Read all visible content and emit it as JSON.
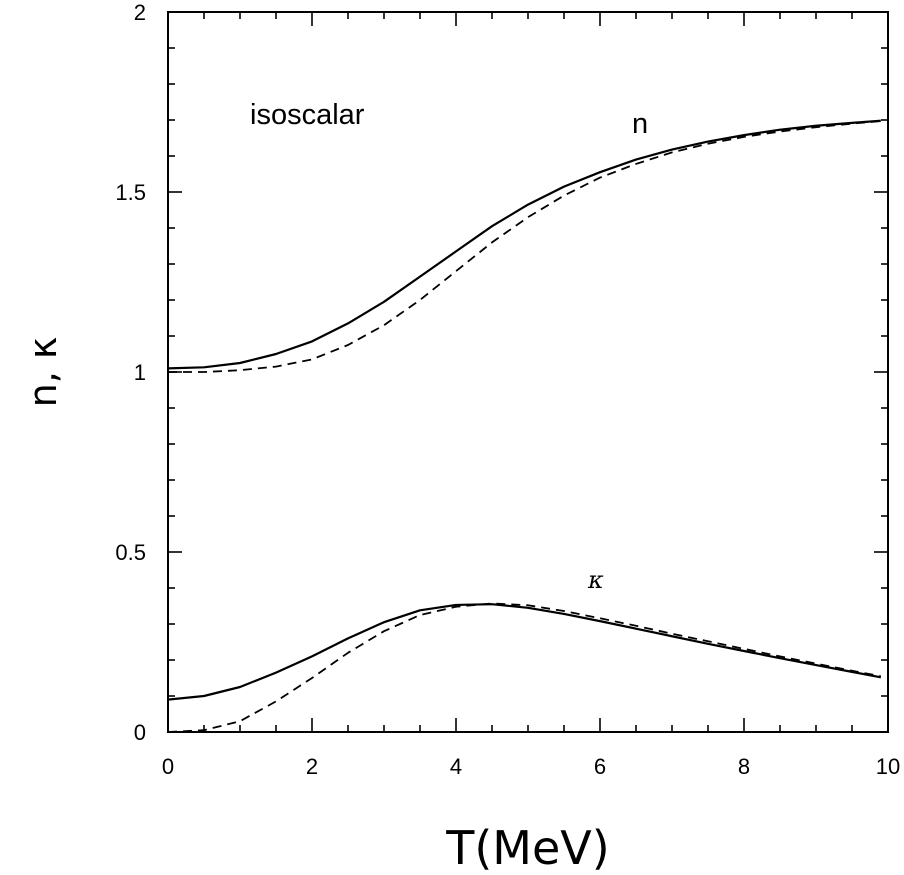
{
  "chart_data": {
    "type": "line",
    "xlabel": "T(MeV)",
    "ylabel": "n, κ",
    "xlim": [
      0,
      10
    ],
    "ylim": [
      0,
      2
    ],
    "x_ticks": [
      "0",
      "2",
      "4",
      "6",
      "8",
      "10"
    ],
    "y_ticks": [
      "0",
      "0.5",
      "1",
      "1.5",
      "2"
    ],
    "x_tick_values": [
      0,
      2,
      4,
      6,
      8,
      10
    ],
    "y_tick_values": [
      0,
      0.5,
      1,
      1.5,
      2
    ],
    "grid": false,
    "annotations": {
      "panel": "isoscalar",
      "n_label": "n",
      "kappa_label": "κ"
    },
    "series": [
      {
        "style": "solid",
        "x": [
          0,
          0.5,
          1,
          1.5,
          2,
          2.5,
          3,
          3.5,
          4,
          4.5,
          5,
          5.5,
          6,
          6.5,
          7,
          7.5,
          8,
          8.5,
          9,
          9.5,
          9.9
        ],
        "y": [
          1.01,
          1.013,
          1.025,
          1.05,
          1.085,
          1.135,
          1.195,
          1.265,
          1.335,
          1.405,
          1.465,
          1.515,
          1.555,
          1.59,
          1.618,
          1.64,
          1.658,
          1.673,
          1.684,
          1.692,
          1.698
        ]
      },
      {
        "style": "dashed",
        "x": [
          0,
          0.5,
          1,
          1.5,
          2,
          2.5,
          3,
          3.5,
          4,
          4.5,
          5,
          5.5,
          6,
          6.5,
          7,
          7.5,
          8,
          8.5,
          9,
          9.5,
          9.9
        ],
        "y": [
          1.0,
          1.0,
          1.005,
          1.015,
          1.035,
          1.075,
          1.13,
          1.2,
          1.28,
          1.36,
          1.43,
          1.49,
          1.54,
          1.578,
          1.61,
          1.634,
          1.653,
          1.668,
          1.68,
          1.69,
          1.697
        ]
      },
      {
        "style": "solid",
        "x": [
          0,
          0.5,
          1,
          1.5,
          2,
          2.5,
          3,
          3.5,
          4,
          4.5,
          5,
          5.5,
          6,
          6.5,
          7,
          7.5,
          8,
          8.5,
          9,
          9.5,
          9.9
        ],
        "y": [
          0.09,
          0.1,
          0.125,
          0.165,
          0.21,
          0.26,
          0.305,
          0.338,
          0.353,
          0.355,
          0.345,
          0.328,
          0.308,
          0.287,
          0.266,
          0.245,
          0.225,
          0.205,
          0.186,
          0.167,
          0.152
        ]
      },
      {
        "style": "dashed",
        "x": [
          0,
          0.5,
          1,
          1.5,
          2,
          2.5,
          3,
          3.5,
          4,
          4.5,
          5,
          5.5,
          6,
          6.5,
          7,
          7.5,
          8,
          8.5,
          9,
          9.5,
          9.9
        ],
        "y": [
          0.0,
          0.005,
          0.03,
          0.085,
          0.15,
          0.22,
          0.28,
          0.325,
          0.348,
          0.357,
          0.352,
          0.336,
          0.316,
          0.295,
          0.273,
          0.252,
          0.231,
          0.21,
          0.19,
          0.17,
          0.155
        ]
      }
    ]
  }
}
